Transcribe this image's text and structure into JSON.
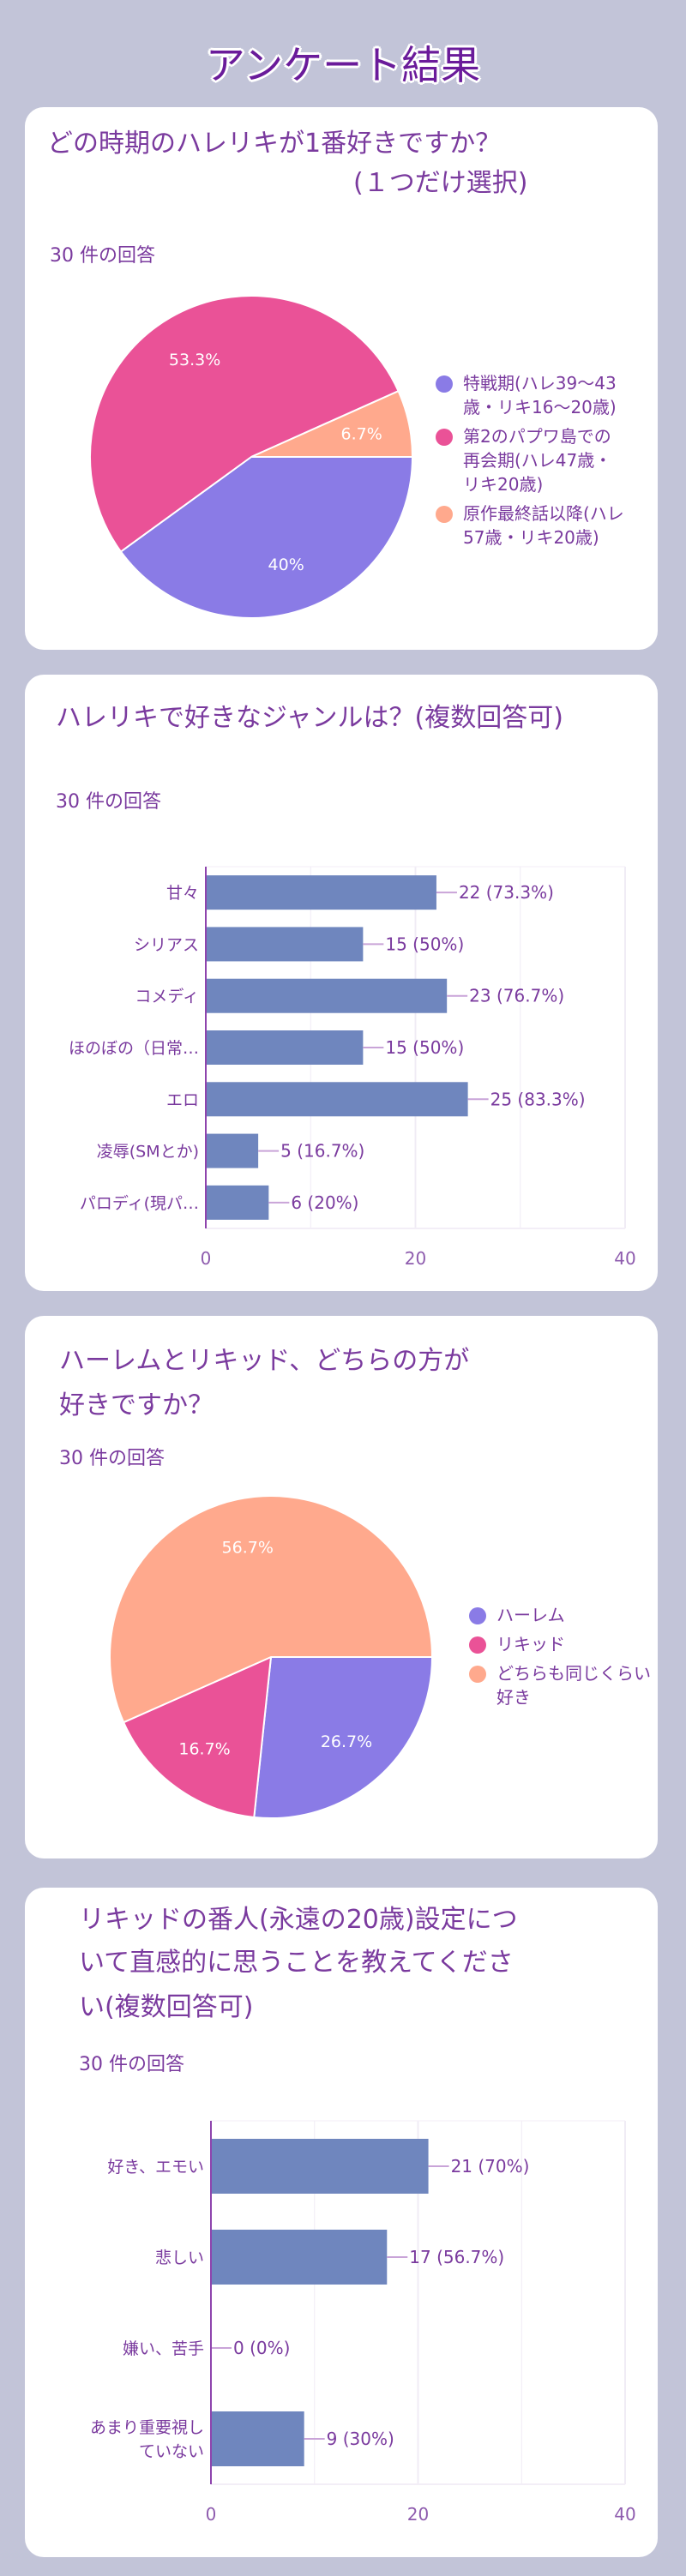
{
  "page": {
    "title": "アンケート結果"
  },
  "colors": {
    "background": "#c2c4d8",
    "text": "#7a3a9e",
    "bar": "#6f86be",
    "slice1": "#8a7be6",
    "slice2": "#ea5297",
    "slice3": "#ffa98d"
  },
  "chart_data": [
    {
      "type": "pie",
      "title_line1": "どの時期のハレリキが1番好きですか？",
      "title_line2": "(１つだけ選択)",
      "responses": "30 件の回答",
      "categories": [
        "特戦期(ハレ39〜43歳・リキ16〜20歳)",
        "第2のパプワ島での再会期(ハレ47歳・リキ20歳)",
        "原作最終話以降(ハレ57歳・リキ20歳)"
      ],
      "legend_lines": [
        [
          "特戦期(ハレ39〜43",
          "歳・リキ16〜20歳)"
        ],
        [
          "第2のパプワ島での",
          "再会期(ハレ47歳・",
          "リキ20歳)"
        ],
        [
          "原作最終話以降(ハレ",
          "57歳・リキ20歳)"
        ]
      ],
      "values": [
        40,
        53.3,
        6.7
      ],
      "labels": [
        "40%",
        "53.3%",
        "6.7%"
      ],
      "legend": "right"
    },
    {
      "type": "bar",
      "title": "ハレリキで好きなジャンルは？(複数回答可)",
      "responses": "30 件の回答",
      "categories": [
        "甘々",
        "シリアス",
        "コメディ",
        "ほのぼの（日常…",
        "エロ",
        "凌辱(SMとか)",
        "パロディ(現パ…"
      ],
      "values": [
        22,
        15,
        23,
        15,
        25,
        5,
        6
      ],
      "labels": [
        "22 (73.3%)",
        "15 (50%)",
        "23 (76.7%)",
        "15 (50%)",
        "25 (83.3%)",
        "5 (16.7%)",
        "6 (20%)"
      ],
      "xlim": [
        0,
        40
      ],
      "xticks": [
        "0",
        "20",
        "40"
      ],
      "grid": true
    },
    {
      "type": "pie",
      "title_line1": "ハーレムとリキッド、どちらの方が",
      "title_line2": "好きですか？",
      "responses": "30 件の回答",
      "categories": [
        "ハーレム",
        "リキッド",
        "どちらも同じくらい好き"
      ],
      "legend_lines": [
        [
          "ハーレム"
        ],
        [
          "リキッド"
        ],
        [
          "どちらも同じくらい",
          "好き"
        ]
      ],
      "values": [
        26.7,
        16.7,
        56.7
      ],
      "labels": [
        "26.7%",
        "16.7%",
        "56.7%"
      ],
      "legend": "right"
    },
    {
      "type": "bar",
      "title_line1": "リキッドの番人(永遠の20歳)設定につ",
      "title_line2": "いて直感的に思うことを教えてくださ",
      "title_line3": "い(複数回答可)",
      "responses": "30 件の回答",
      "categories": [
        "好き、エモい",
        "悲しい",
        "嫌い、苦手",
        "あまり重要視していない"
      ],
      "category_lines": [
        [
          "好き、エモい"
        ],
        [
          "悲しい"
        ],
        [
          "嫌い、苦手"
        ],
        [
          "あまり重要視し",
          "ていない"
        ]
      ],
      "values": [
        21,
        17,
        0,
        9
      ],
      "labels": [
        "21 (70%)",
        "17 (56.7%)",
        "0 (0%)",
        "9 (30%)"
      ],
      "xlim": [
        0,
        40
      ],
      "xticks": [
        "0",
        "20",
        "40"
      ],
      "grid": true
    }
  ]
}
